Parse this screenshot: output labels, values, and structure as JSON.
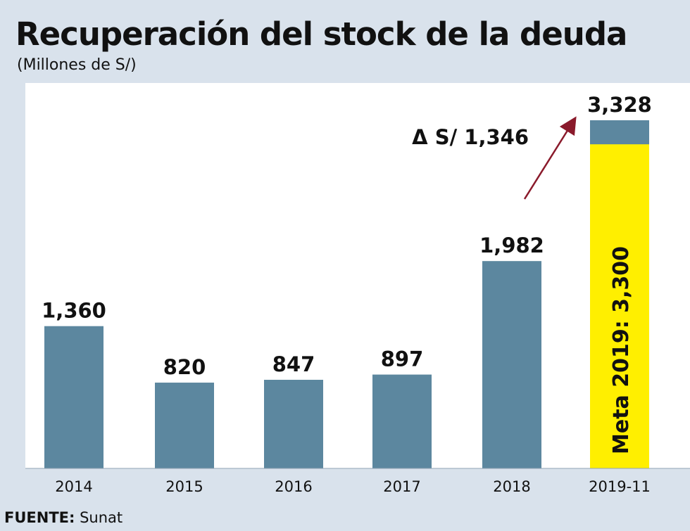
{
  "title": "Recuperación del stock de la deuda",
  "subtitle": "(Millones de S/)",
  "source": {
    "label": "FUENTE:",
    "value": "Sunat"
  },
  "colors": {
    "background": "#d9e2ec",
    "plot_background": "#ffffff",
    "bar": "#5c879f",
    "target": "#ffef00",
    "arrow": "#8a1a2b",
    "text": "#111111"
  },
  "chart_data": {
    "type": "bar",
    "title": "Recuperación del stock de la deuda",
    "ylabel": "Millones de S/",
    "xlabel": "",
    "categories": [
      "2014",
      "2015",
      "2016",
      "2017",
      "2018",
      "2019-11"
    ],
    "values": [
      1360,
      820,
      847,
      897,
      1982,
      3328
    ],
    "value_labels": [
      "1,360",
      "820",
      "847",
      "897",
      "1,982",
      "3,328"
    ],
    "ylim": [
      0,
      3600
    ],
    "grid": false,
    "target": {
      "category": "2019-11",
      "value": 3300,
      "label": "Meta 2019: 3,300"
    },
    "annotation": {
      "text": "Δ S/ 1,346",
      "from_category": "2018",
      "to_category": "2019-11"
    }
  }
}
